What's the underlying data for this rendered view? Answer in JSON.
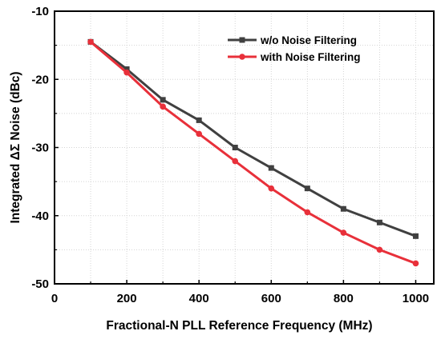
{
  "chart_data": {
    "type": "line",
    "title": "",
    "xlabel": "Fractional-N PLL Reference Frequency (MHz)",
    "ylabel": "Integrated ΔΣ Noise (dBc)",
    "xlim": [
      0,
      1050
    ],
    "ylim": [
      -50,
      -10
    ],
    "xticks": [
      0,
      200,
      400,
      600,
      800,
      1000
    ],
    "yticks": [
      -10,
      -20,
      -30,
      -40,
      -50
    ],
    "grid": true,
    "legend_position": "top-right",
    "x": [
      100,
      200,
      300,
      400,
      500,
      600,
      700,
      800,
      900,
      1000
    ],
    "series": [
      {
        "name": "w/o Noise Filtering",
        "color": "#404040",
        "marker": "square",
        "values": [
          -14.5,
          -18.5,
          -23,
          -26,
          -30,
          -33,
          -36,
          -39,
          -41,
          -43
        ]
      },
      {
        "name": "with Noise Filtering",
        "color": "#e8303a",
        "marker": "circle",
        "values": [
          -14.5,
          -19,
          -24,
          -28,
          -32,
          -36,
          -39.5,
          -42.5,
          -45,
          -47
        ]
      }
    ]
  }
}
